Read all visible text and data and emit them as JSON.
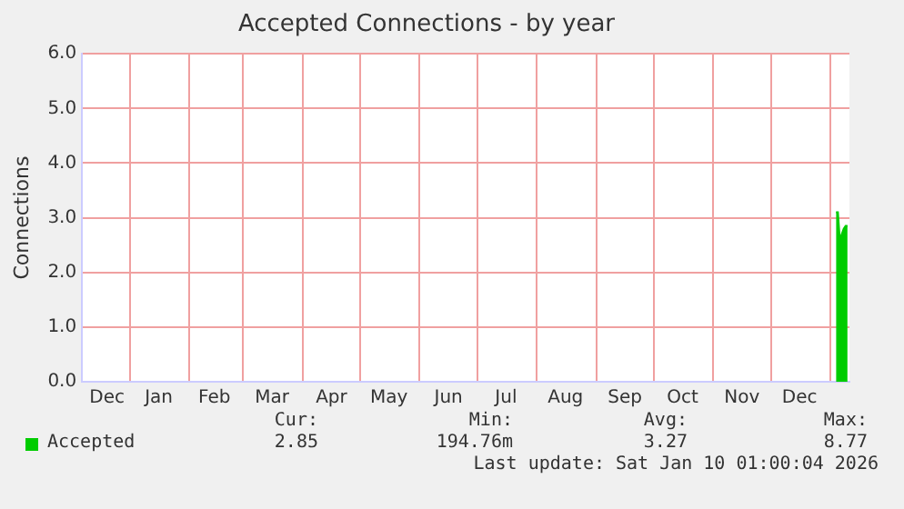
{
  "chart_data": {
    "type": "area",
    "title": "Accepted Connections - by year",
    "ylabel": "Connections",
    "x": [
      "2026-01-04",
      "2026-01-05",
      "2026-01-06",
      "2026-01-07",
      "2026-01-08",
      "2026-01-09",
      "2026-01-10"
    ],
    "series": [
      {
        "name": "Accepted",
        "color": "#00cc00",
        "values": [
          3.1,
          3.1,
          2.6,
          2.7,
          2.8,
          2.85,
          2.85
        ]
      }
    ],
    "xlim": [
      "2024-12-07",
      "2026-01-11"
    ],
    "xticks": [
      {
        "value": "2024-12-20",
        "label": "Dec"
      },
      {
        "value": "2025-01-01",
        "label": null
      },
      {
        "value": "2025-01-16",
        "label": "Jan"
      },
      {
        "value": "2025-02-01",
        "label": null
      },
      {
        "value": "2025-02-14",
        "label": "Feb"
      },
      {
        "value": "2025-03-01",
        "label": null
      },
      {
        "value": "2025-03-16",
        "label": "Mar"
      },
      {
        "value": "2025-04-01",
        "label": null
      },
      {
        "value": "2025-04-16",
        "label": "Apr"
      },
      {
        "value": "2025-05-01",
        "label": null
      },
      {
        "value": "2025-05-16",
        "label": "May"
      },
      {
        "value": "2025-06-01",
        "label": null
      },
      {
        "value": "2025-06-16",
        "label": "Jun"
      },
      {
        "value": "2025-07-01",
        "label": null
      },
      {
        "value": "2025-07-16",
        "label": "Jul"
      },
      {
        "value": "2025-08-01",
        "label": null
      },
      {
        "value": "2025-08-16",
        "label": "Aug"
      },
      {
        "value": "2025-09-01",
        "label": null
      },
      {
        "value": "2025-09-16",
        "label": "Sep"
      },
      {
        "value": "2025-10-01",
        "label": null
      },
      {
        "value": "2025-10-16",
        "label": "Oct"
      },
      {
        "value": "2025-11-01",
        "label": null
      },
      {
        "value": "2025-11-16",
        "label": "Nov"
      },
      {
        "value": "2025-12-01",
        "label": null
      },
      {
        "value": "2025-12-16",
        "label": "Dec"
      },
      {
        "value": "2026-01-01",
        "label": null
      }
    ],
    "ylim": [
      0,
      6
    ],
    "yticks": [
      {
        "value": 0,
        "label": "0.0"
      },
      {
        "value": 1,
        "label": "1.0"
      },
      {
        "value": 2,
        "label": "2.0"
      },
      {
        "value": 3,
        "label": "3.0"
      },
      {
        "value": 4,
        "label": "4.0"
      },
      {
        "value": 5,
        "label": "5.0"
      },
      {
        "value": 6,
        "label": "6.0"
      }
    ],
    "grid": true,
    "legend": "bottom left",
    "annotations": [
      "Cur:",
      "Min:",
      "Avg:",
      "Max:",
      "2.85",
      "194.76m",
      "3.27",
      "8.77",
      "Last update: Sat Jan 10 01:00:04 2026"
    ]
  }
}
